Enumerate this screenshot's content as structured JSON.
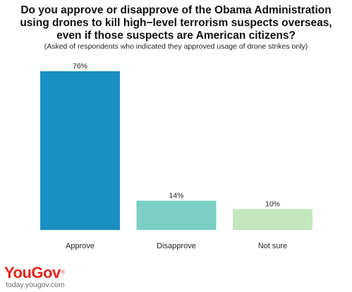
{
  "header": {
    "title_lines": [
      "Do you approve or disapprove of the Obama Administration",
      "using drones to kill high−level terrorism suspects overseas,",
      "even if those suspects are American citizens?"
    ],
    "subtitle": "(Asked of respondents who indicated they approved usage of drone strikes only)"
  },
  "chart_data": {
    "type": "bar",
    "title": "Do you approve or disapprove of the Obama Administration using drones to kill high−level terrorism suspects overseas, even if those suspects are American citizens?",
    "subtitle": "(Asked of respondents who indicated they approved usage of drone strikes only)",
    "categories": [
      "Approve",
      "Disapprove",
      "Not sure"
    ],
    "values": [
      76,
      14,
      10
    ],
    "value_labels": [
      "76%",
      "14%",
      "10%"
    ],
    "colors": [
      "#1a8fc2",
      "#7ccfc4",
      "#c3e6bd"
    ],
    "xlabel": "",
    "ylabel": "",
    "ylim": [
      0,
      76
    ],
    "grid": false,
    "legend": "none"
  },
  "footer": {
    "logo_text": "YouGov",
    "logo_mark": "®",
    "site": "today.yougov.com",
    "logo_color": "#e2231a"
  }
}
